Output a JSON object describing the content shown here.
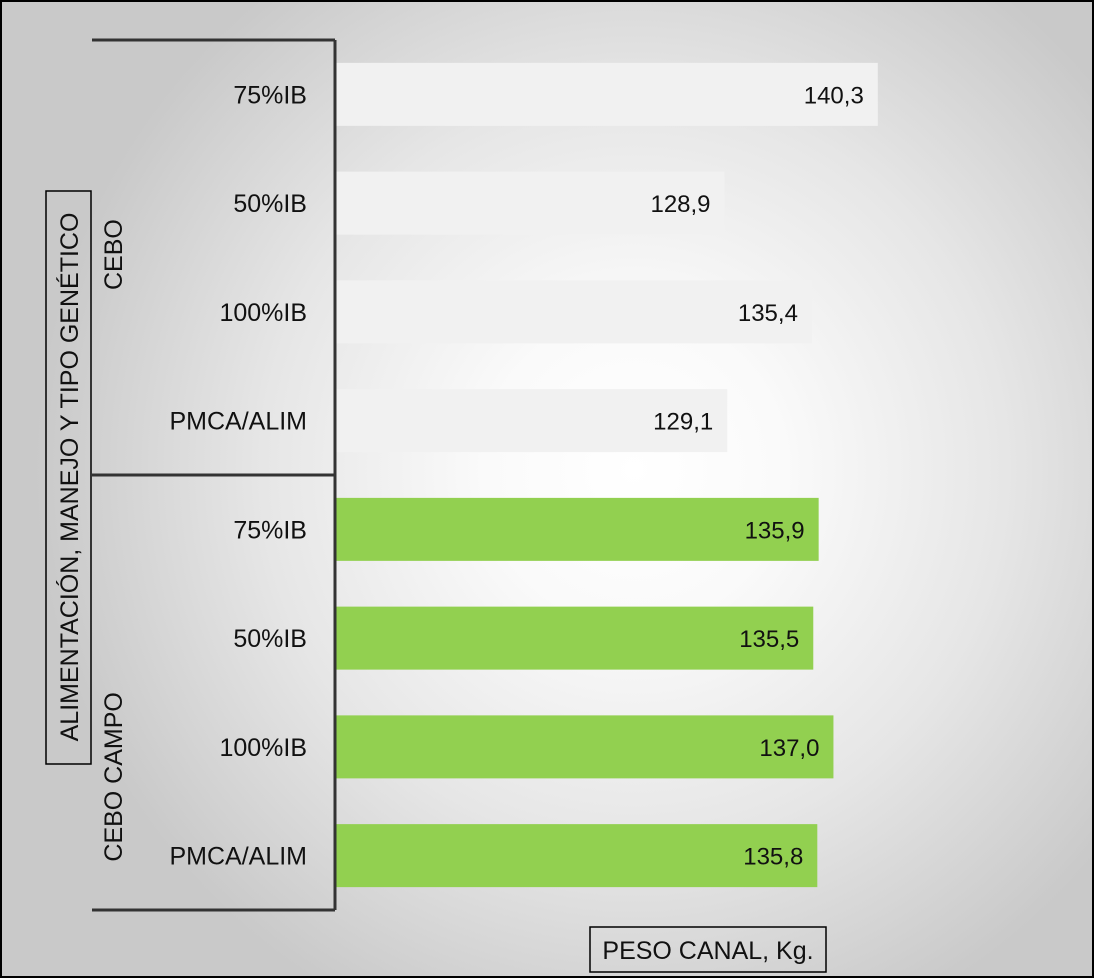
{
  "chart_data": {
    "type": "bar",
    "orientation": "horizontal",
    "xlabel": "PESO CANAL, Kg.",
    "ylabel": "ALIMENTACIÓN, MANEJO Y TIPO GENÉTICO",
    "xlim": [
      100,
      145
    ],
    "grid": false,
    "groups": [
      {
        "name": "CEBO",
        "color": "#f1f1f1",
        "categories": [
          "75%IB",
          "50%IB",
          "100%IB",
          "PMCA/ALIM"
        ],
        "values": [
          140.3,
          128.9,
          135.4,
          129.1
        ],
        "value_labels": [
          "140,3",
          "128,9",
          "135,4",
          "129,1"
        ]
      },
      {
        "name": "CEBO CAMPO",
        "color": "#92d050",
        "categories": [
          "75%IB",
          "50%IB",
          "100%IB",
          "PMCA/ALIM"
        ],
        "values": [
          135.9,
          135.5,
          137.0,
          135.8
        ],
        "value_labels": [
          "135,9",
          "135,5",
          "137,0",
          "135,8"
        ]
      }
    ]
  }
}
